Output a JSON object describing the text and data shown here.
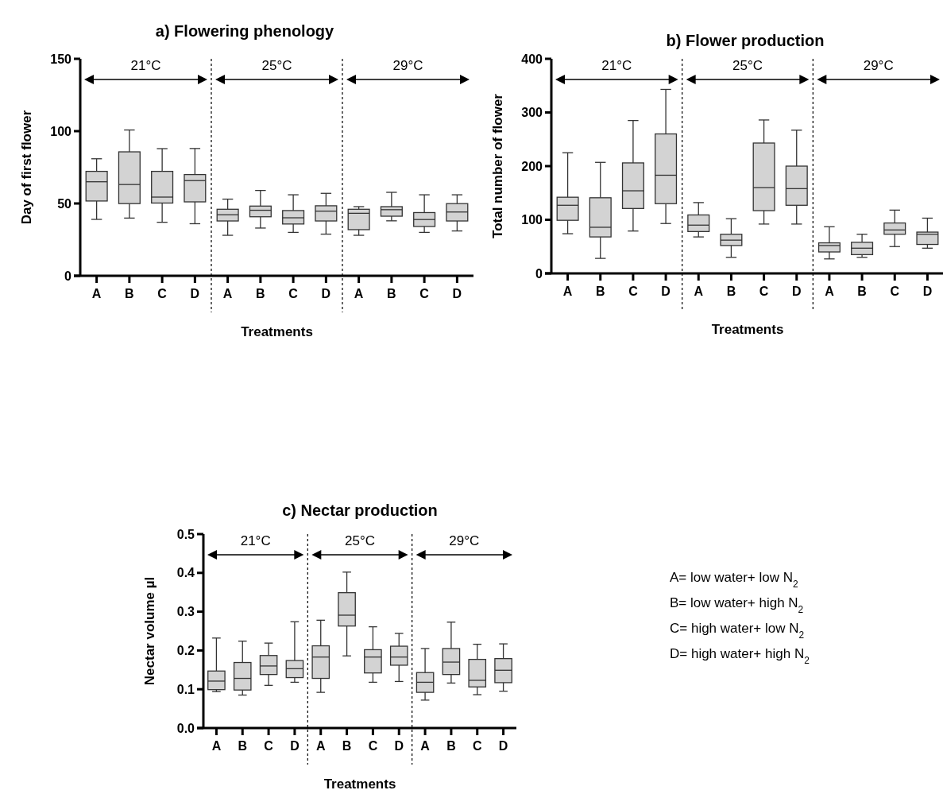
{
  "chart_data": [
    {
      "type": "box",
      "title": "a) Flowering phenology",
      "xlabel": "Treatments",
      "ylabel": "Day of first flower",
      "color": "#d3d3d3",
      "categories": [
        "A",
        "B",
        "C",
        "D",
        "A",
        "B",
        "C",
        "D",
        "A",
        "B",
        "C",
        "D"
      ],
      "ylim": [
        0,
        150
      ],
      "yticks": [
        0,
        50,
        100,
        150
      ],
      "boxes": [
        {
          "low": 39,
          "q1": 51.7,
          "median": 65,
          "q3": 72.2,
          "high": 80.9
        },
        {
          "low": 39.9,
          "q1": 49.9,
          "median": 63.1,
          "q3": 85.7,
          "high": 100.8
        },
        {
          "low": 37,
          "q1": 50.3,
          "median": 54.4,
          "q3": 72.2,
          "high": 87.9
        },
        {
          "low": 36,
          "q1": 51.1,
          "median": 65.8,
          "q3": 70,
          "high": 88
        },
        {
          "low": 28,
          "q1": 37.9,
          "median": 42.2,
          "q3": 46,
          "high": 53
        },
        {
          "low": 33,
          "q1": 40.8,
          "median": 45.3,
          "q3": 48.2,
          "high": 59
        },
        {
          "low": 30,
          "q1": 35.8,
          "median": 40.1,
          "q3": 45.1,
          "high": 56
        },
        {
          "low": 28.8,
          "q1": 37.9,
          "median": 44.7,
          "q3": 48.4,
          "high": 57
        },
        {
          "low": 28,
          "q1": 31.9,
          "median": 43.2,
          "q3": 46,
          "high": 47.8
        },
        {
          "low": 38,
          "q1": 41.2,
          "median": 45.7,
          "q3": 47.8,
          "high": 57.7
        },
        {
          "low": 30,
          "q1": 34.1,
          "median": 38.9,
          "q3": 43.7,
          "high": 56
        },
        {
          "low": 31,
          "q1": 37.9,
          "median": 44.1,
          "q3": 49.9,
          "high": 56
        }
      ],
      "annotations": [
        "21°C",
        "25°C",
        "29°C"
      ]
    },
    {
      "type": "box",
      "title": "b) Flower production",
      "xlabel": "Treatments",
      "ylabel": "Total number of flower",
      "color": "#d3d3d3",
      "categories": [
        "A",
        "B",
        "C",
        "D",
        "A",
        "B",
        "C",
        "D",
        "A",
        "B",
        "C",
        "D"
      ],
      "ylim": [
        0,
        400
      ],
      "yticks": [
        0,
        100,
        200,
        300,
        400
      ],
      "boxes": [
        {
          "low": 74,
          "q1": 99,
          "median": 127,
          "q3": 142,
          "high": 225
        },
        {
          "low": 28,
          "q1": 68,
          "median": 86,
          "q3": 141,
          "high": 207
        },
        {
          "low": 79,
          "q1": 121,
          "median": 154,
          "q3": 206,
          "high": 285
        },
        {
          "low": 93,
          "q1": 130,
          "median": 183,
          "q3": 260,
          "high": 343
        },
        {
          "low": 68,
          "q1": 78,
          "median": 90,
          "q3": 109,
          "high": 132
        },
        {
          "low": 30,
          "q1": 52,
          "median": 62,
          "q3": 73,
          "high": 102
        },
        {
          "low": 92,
          "q1": 117,
          "median": 160,
          "q3": 243,
          "high": 286
        },
        {
          "low": 92,
          "q1": 127,
          "median": 158,
          "q3": 200,
          "high": 267
        },
        {
          "low": 27,
          "q1": 40,
          "median": 52,
          "q3": 57,
          "high": 87
        },
        {
          "low": 30,
          "q1": 35,
          "median": 47,
          "q3": 58,
          "high": 73
        },
        {
          "low": 50,
          "q1": 73,
          "median": 81,
          "q3": 94,
          "high": 118
        },
        {
          "low": 47,
          "q1": 54,
          "median": 73,
          "q3": 77,
          "high": 103
        }
      ],
      "annotations": [
        "21°C",
        "25°C",
        "29°C"
      ]
    },
    {
      "type": "box",
      "title": "c) Nectar production",
      "xlabel": "Treatments",
      "ylabel": "Nectar volume µl",
      "color": "#d3d3d3",
      "categories": [
        "A",
        "B",
        "C",
        "D",
        "A",
        "B",
        "C",
        "D",
        "A",
        "B",
        "C",
        "D"
      ],
      "ylim": [
        0,
        0.5
      ],
      "yticks": [
        {
          "value": 0,
          "label": "0.0"
        },
        0.1,
        0.2,
        0.3,
        0.4,
        0.5
      ],
      "boxes": [
        {
          "low": 0.094,
          "q1": 0.099,
          "median": 0.121,
          "q3": 0.147,
          "high": 0.232
        },
        {
          "low": 0.085,
          "q1": 0.098,
          "median": 0.128,
          "q3": 0.169,
          "high": 0.224
        },
        {
          "low": 0.11,
          "q1": 0.138,
          "median": 0.16,
          "q3": 0.187,
          "high": 0.219
        },
        {
          "low": 0.118,
          "q1": 0.13,
          "median": 0.153,
          "q3": 0.174,
          "high": 0.274
        },
        {
          "low": 0.092,
          "q1": 0.128,
          "median": 0.183,
          "q3": 0.212,
          "high": 0.278
        },
        {
          "low": 0.186,
          "q1": 0.263,
          "median": 0.291,
          "q3": 0.349,
          "high": 0.402
        },
        {
          "low": 0.118,
          "q1": 0.142,
          "median": 0.183,
          "q3": 0.202,
          "high": 0.261
        },
        {
          "low": 0.12,
          "q1": 0.162,
          "median": 0.183,
          "q3": 0.211,
          "high": 0.244
        },
        {
          "low": 0.072,
          "q1": 0.092,
          "median": 0.118,
          "q3": 0.143,
          "high": 0.205
        },
        {
          "low": 0.116,
          "q1": 0.138,
          "median": 0.17,
          "q3": 0.205,
          "high": 0.273
        },
        {
          "low": 0.086,
          "q1": 0.106,
          "median": 0.123,
          "q3": 0.177,
          "high": 0.216
        },
        {
          "low": 0.095,
          "q1": 0.117,
          "median": 0.149,
          "q3": 0.179,
          "high": 0.217
        }
      ],
      "annotations": [
        "21°C",
        "25°C",
        "29°C",
        "A= low water+ low N$_{2}$",
        "B= low water+ high N$_{2}$",
        "C= high water+ low N$_{2}$",
        "D= high water+ high N$_{2}$"
      ]
    }
  ]
}
